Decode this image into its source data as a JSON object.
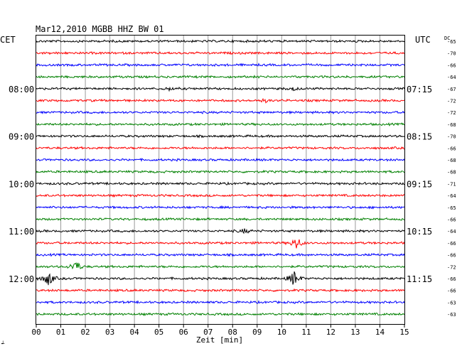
{
  "chart_data": {
    "type": "line",
    "title": "Mar12,2010   MGBB HHZ BW 01",
    "left_label": "CET",
    "right_label": "UTC",
    "dc_label": "DC",
    "xlabel": "Zeit [min]",
    "xlim": [
      0,
      15
    ],
    "x_ticks": [
      "00",
      "01",
      "02",
      "03",
      "04",
      "05",
      "06",
      "07",
      "08",
      "09",
      "10",
      "11",
      "12",
      "13",
      "14",
      "15"
    ],
    "trace_colors": [
      "#000000",
      "#ff0000",
      "#0000ff",
      "#008000"
    ],
    "cet_labels": [
      {
        "trace": 4,
        "text": "08:00"
      },
      {
        "trace": 8,
        "text": "09:00"
      },
      {
        "trace": 12,
        "text": "10:00"
      },
      {
        "trace": 16,
        "text": "11:00"
      },
      {
        "trace": 20,
        "text": "12:00"
      }
    ],
    "utc_labels": [
      {
        "trace": 4,
        "text": "07:15"
      },
      {
        "trace": 8,
        "text": "08:15"
      },
      {
        "trace": 12,
        "text": "09:15"
      },
      {
        "trace": 16,
        "text": "10:15"
      },
      {
        "trace": 20,
        "text": "11:15"
      }
    ],
    "dc_offsets": [
      "-65",
      "-70",
      "-66",
      "-64",
      "-67",
      "-72",
      "-72",
      "-68",
      "-70",
      "-66",
      "-68",
      "-68",
      "-71",
      "-64",
      "-65",
      "-66",
      "-64",
      "-66",
      "-66",
      "-72",
      "-66",
      "-66",
      "-63",
      "-63"
    ],
    "events": [
      {
        "trace": 4,
        "minute": 5.4,
        "amplitude": 2
      },
      {
        "trace": 4,
        "minute": 10.5,
        "amplitude": 2
      },
      {
        "trace": 5,
        "minute": 9.3,
        "amplitude": 2
      },
      {
        "trace": 16,
        "minute": 8.5,
        "amplitude": 3
      },
      {
        "trace": 17,
        "minute": 10.6,
        "amplitude": 9
      },
      {
        "trace": 19,
        "minute": 1.6,
        "amplitude": 9
      },
      {
        "trace": 20,
        "minute": 0.5,
        "amplitude": 11
      },
      {
        "trace": 20,
        "minute": 10.5,
        "amplitude": 11
      }
    ],
    "corner_mark": "┵"
  }
}
